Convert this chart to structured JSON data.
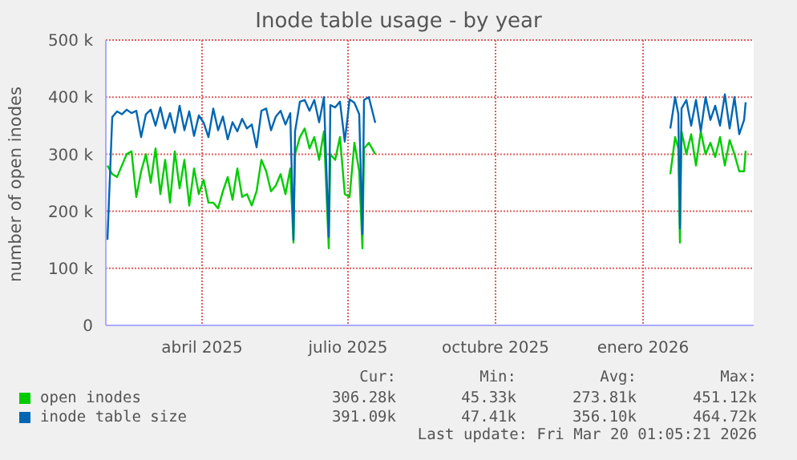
{
  "chart_data": {
    "type": "line",
    "title": "Inode table usage - by year",
    "ylabel": "number of open inodes",
    "x": [
      "2025-02-15",
      "2025-02-18",
      "2025-02-21",
      "2025-02-24",
      "2025-02-27",
      "2025-03-02",
      "2025-03-05",
      "2025-03-08",
      "2025-03-11",
      "2025-03-14",
      "2025-03-17",
      "2025-03-20",
      "2025-03-23",
      "2025-03-26",
      "2025-03-29",
      "2025-04-01",
      "2025-04-04",
      "2025-04-07",
      "2025-04-10",
      "2025-04-13",
      "2025-04-16",
      "2025-04-19",
      "2025-04-22",
      "2025-04-25",
      "2025-04-28",
      "2025-05-01",
      "2025-05-04",
      "2025-05-07",
      "2025-05-10",
      "2025-05-13",
      "2025-05-16",
      "2025-05-19",
      "2025-05-22",
      "2025-05-25",
      "2025-05-28",
      "2025-05-31",
      "2025-06-03",
      "2025-06-06",
      "2025-06-09",
      "2025-06-11",
      "2025-06-12",
      "2025-06-15",
      "2025-06-18",
      "2025-06-21",
      "2025-06-24",
      "2025-06-27",
      "2025-06-30",
      "2025-07-03",
      "2025-07-04",
      "2025-07-07",
      "2025-07-10",
      "2025-07-13",
      "2025-07-16",
      "2025-07-19",
      "2025-07-22",
      "2025-07-24",
      "2025-07-25",
      "2025-07-28",
      "2025-08-01",
      "2025-10-15",
      "2026-02-01",
      "2026-02-04",
      "2026-02-06",
      "2026-02-07",
      "2026-02-08",
      "2026-02-11",
      "2026-02-14",
      "2026-02-17",
      "2026-02-20",
      "2026-02-23",
      "2026-02-26",
      "2026-03-01",
      "2026-03-04",
      "2026-03-07",
      "2026-03-10",
      "2026-03-13",
      "2026-03-16",
      "2026-03-19",
      "2026-03-20"
    ],
    "series": [
      {
        "name": "open inodes",
        "color": "#00cc00",
        "values": [
          280000,
          265000,
          260000,
          280000,
          300000,
          305000,
          225000,
          270000,
          300000,
          250000,
          310000,
          230000,
          290000,
          215000,
          305000,
          240000,
          290000,
          210000,
          275000,
          230000,
          255000,
          215000,
          215000,
          205000,
          235000,
          260000,
          220000,
          275000,
          225000,
          230000,
          210000,
          235000,
          290000,
          270000,
          235000,
          245000,
          265000,
          230000,
          275000,
          145000,
          300000,
          330000,
          345000,
          310000,
          330000,
          290000,
          340000,
          135000,
          300000,
          290000,
          330000,
          230000,
          225000,
          320000,
          270000,
          135000,
          310000,
          320000,
          300000,
          null,
          265000,
          330000,
          310000,
          145000,
          340000,
          300000,
          335000,
          280000,
          340000,
          300000,
          320000,
          295000,
          330000,
          280000,
          325000,
          300000,
          270000,
          270000,
          306000
        ]
      },
      {
        "name": "inode table size",
        "color": "#0066b3",
        "values": [
          150000,
          365000,
          375000,
          370000,
          378000,
          372000,
          376000,
          330000,
          370000,
          378000,
          350000,
          382000,
          345000,
          372000,
          338000,
          385000,
          342000,
          375000,
          332000,
          368000,
          355000,
          330000,
          380000,
          342000,
          366000,
          326000,
          356000,
          340000,
          362000,
          345000,
          352000,
          312000,
          376000,
          380000,
          342000,
          366000,
          376000,
          352000,
          372000,
          150000,
          340000,
          392000,
          395000,
          376000,
          395000,
          356000,
          400000,
          155000,
          386000,
          382000,
          392000,
          322000,
          396000,
          390000,
          370000,
          160000,
          395000,
          400000,
          355000,
          null,
          345000,
          400000,
          370000,
          170000,
          380000,
          395000,
          350000,
          395000,
          340000,
          400000,
          360000,
          385000,
          350000,
          405000,
          345000,
          400000,
          335000,
          360000,
          391000
        ]
      }
    ],
    "xlim": [
      "2025-02-14",
      "2026-03-25"
    ],
    "xticks": [
      {
        "value": "2025-04-15",
        "label": "abril 2025"
      },
      {
        "value": "2025-07-15",
        "label": "julio 2025"
      },
      {
        "value": "2025-10-15",
        "label": "octubre 2025"
      },
      {
        "value": "2026-01-15",
        "label": "enero 2026"
      }
    ],
    "ylim": [
      0,
      500000
    ],
    "yticks": [
      0,
      {
        "value": 100000,
        "label": "100 k"
      },
      {
        "value": 200000,
        "label": "200 k"
      },
      {
        "value": 300000,
        "label": "300 k"
      },
      {
        "value": 400000,
        "label": "400 k"
      },
      {
        "value": 500000,
        "label": "500 k"
      }
    ],
    "grid": true,
    "legend": "bottom",
    "marker": "none",
    "line_style": "solid",
    "annotations": [
      "Cur:",
      "Min:",
      "Avg:",
      "Max:",
      "306.28k",
      "45.33k",
      "273.81k",
      "451.12k",
      "391.09k",
      "47.41k",
      "356.10k",
      "464.72k",
      "Last update: Fri Mar 20 01:05:21 2026"
    ]
  }
}
